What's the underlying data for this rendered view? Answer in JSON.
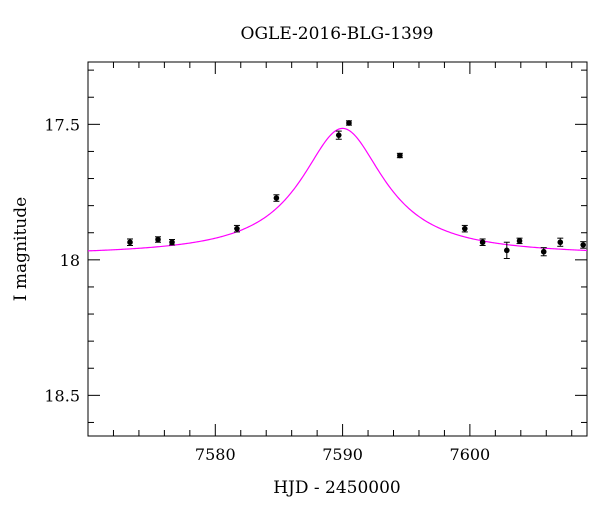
{
  "chart_data": {
    "type": "scatter",
    "title": "OGLE-2016-BLG-1399",
    "xlabel": "HJD - 2450000",
    "ylabel": "I magnitude",
    "xlim": [
      7570.0,
      7609.2
    ],
    "ylim": [
      18.65,
      17.27
    ],
    "y_inverted": true,
    "grid": false,
    "xticks": {
      "major": [
        7580,
        7590,
        7600
      ],
      "labels": [
        "7580",
        "7590",
        "7600"
      ],
      "minor_step": 2
    },
    "yticks": {
      "major": [
        17.5,
        18,
        18.5
      ],
      "labels": [
        "17.5",
        "18",
        "18.5"
      ],
      "minor_step": 0.1
    },
    "colors": {
      "model": "#ff00ff",
      "points": "#000000",
      "axes": "#000000"
    },
    "series": [
      {
        "kind": "points_with_errorbars",
        "x": [
          7573.3,
          7575.5,
          7576.6,
          7581.7,
          7584.8,
          7589.7,
          7590.5,
          7594.5,
          7599.6,
          7601.0,
          7602.9,
          7603.9,
          7605.8,
          7607.1,
          7608.9
        ],
        "y": [
          17.935,
          17.925,
          17.935,
          17.885,
          17.772,
          17.54,
          17.495,
          17.615,
          17.885,
          17.935,
          17.965,
          17.93,
          17.97,
          17.935,
          17.945
        ],
        "err": [
          0.012,
          0.01,
          0.01,
          0.012,
          0.012,
          0.015,
          0.008,
          0.008,
          0.012,
          0.012,
          0.03,
          0.01,
          0.015,
          0.015,
          0.012
        ]
      },
      {
        "kind": "model_curve",
        "peak_time": 7590.0,
        "baseline_mag": 17.985,
        "peak_mag": 17.515,
        "width": 4.0
      }
    ]
  }
}
